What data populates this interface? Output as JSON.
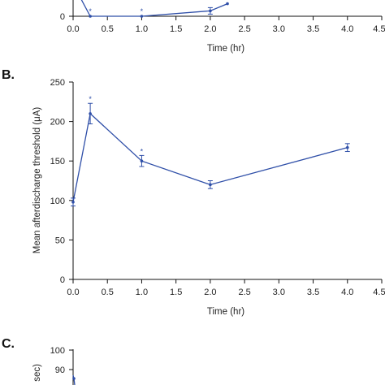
{
  "chart_data": [
    {
      "panel": "A",
      "type": "line",
      "partial": true,
      "x": [
        0.0,
        0.25,
        1.0,
        2.0,
        2.25
      ],
      "series": [
        {
          "values": [
            18,
            0,
            0,
            3,
            7
          ]
        }
      ],
      "xlabel": "Time (hr)",
      "xticks": [
        "0.0",
        "0.5",
        "1.0",
        "1.5",
        "2.0",
        "2.5",
        "3.0",
        "3.5",
        "4.0",
        "4.50"
      ],
      "yticks_visible": [
        "0"
      ],
      "significance_marks": [
        {
          "x": 0.25,
          "label": "*"
        },
        {
          "x": 1.0,
          "label": "*"
        }
      ],
      "color": "#2f4fa8"
    },
    {
      "panel": "B",
      "panel_label": "B.",
      "type": "line",
      "x": [
        0.0,
        0.25,
        1.0,
        2.0,
        4.0
      ],
      "series": [
        {
          "values": [
            98,
            210,
            150,
            120,
            167
          ],
          "errors": [
            5,
            13,
            7,
            5,
            5
          ]
        }
      ],
      "xlabel": "Time (hr)",
      "ylabel": "Mean afterdischarge threshold (μA)",
      "xlim": [
        0,
        4.5
      ],
      "ylim": [
        0,
        250
      ],
      "xticks": [
        "0.0",
        "0.5",
        "1.0",
        "1.5",
        "2.0",
        "2.5",
        "3.0",
        "3.5",
        "4.0",
        "4.50"
      ],
      "yticks": [
        "0",
        "50",
        "100",
        "150",
        "200",
        "250"
      ],
      "significance_marks": [
        {
          "x": 0.25,
          "label": "*"
        },
        {
          "x": 1.0,
          "label": "*"
        }
      ],
      "color": "#2f4fa8"
    },
    {
      "panel": "C",
      "panel_label": "C.",
      "type": "line",
      "partial": true,
      "yticks_visible": [
        "100",
        "90"
      ],
      "ylabel_visible": "sec)",
      "color": "#2f4fa8"
    }
  ]
}
